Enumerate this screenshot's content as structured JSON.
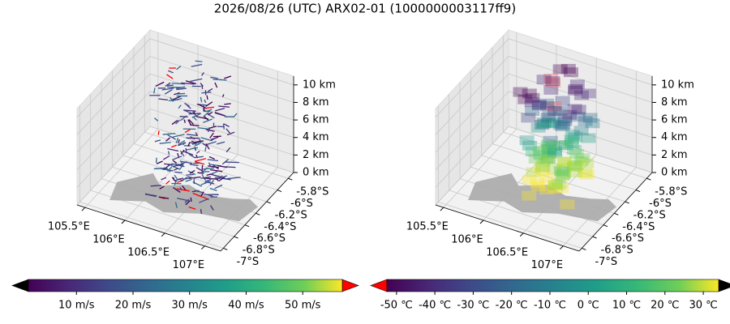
{
  "title": "2026/08/26 (UTC) ARX02-01 (1000000003117ff9)",
  "chart_data": [
    {
      "type": "wind-3d",
      "xlim": [
        105.4,
        107.2
      ],
      "xticks": [
        {
          "value": 105.5,
          "label": "105.5°E"
        },
        {
          "value": 106,
          "label": "106°E"
        },
        {
          "value": 106.5,
          "label": "106.5°E"
        },
        {
          "value": 107,
          "label": "107°E"
        }
      ],
      "ylim": [
        -7.05,
        -5.7
      ],
      "yticks": [
        {
          "value": -7,
          "label": "-7°S"
        },
        {
          "value": -6.8,
          "label": "-6.8°S"
        },
        {
          "value": -6.6,
          "label": "-6.6°S"
        },
        {
          "value": -6.4,
          "label": "-6.4°S"
        },
        {
          "value": -6.2,
          "label": "-6.2°S"
        },
        {
          "value": -6,
          "label": "-6°S"
        },
        {
          "value": -5.8,
          "label": "-5.8°S"
        }
      ],
      "zlim": [
        0,
        11
      ],
      "zticks": [
        {
          "value": 0,
          "label": "0 km"
        },
        {
          "value": 2,
          "label": "2 km"
        },
        {
          "value": 4,
          "label": "4 km"
        },
        {
          "value": 6,
          "label": "6 km"
        },
        {
          "value": 8,
          "label": "8 km"
        },
        {
          "value": 10,
          "label": "10 km"
        }
      ],
      "colorbar": {
        "lim": [
          1.5,
          57
        ],
        "under": "#000000",
        "over": "#ff0000",
        "ticks": [
          {
            "value": 10,
            "label": "10 m/s"
          },
          {
            "value": 20,
            "label": "20 m/s"
          },
          {
            "value": 30,
            "label": "30 m/s"
          },
          {
            "value": 40,
            "label": "40 m/s"
          },
          {
            "value": 50,
            "label": "50 m/s"
          }
        ]
      }
    },
    {
      "type": "temperature-voxel-3d",
      "xlim": [
        105.4,
        107.2
      ],
      "xticks": [
        {
          "value": 105.5,
          "label": "105.5°E"
        },
        {
          "value": 106,
          "label": "106°E"
        },
        {
          "value": 106.5,
          "label": "106.5°E"
        },
        {
          "value": 107,
          "label": "107°E"
        }
      ],
      "ylim": [
        -7.05,
        -5.7
      ],
      "yticks": [
        {
          "value": -7,
          "label": "-7°S"
        },
        {
          "value": -6.8,
          "label": "-6.8°S"
        },
        {
          "value": -6.6,
          "label": "-6.6°S"
        },
        {
          "value": -6.4,
          "label": "-6.4°S"
        },
        {
          "value": -6.2,
          "label": "-6.2°S"
        },
        {
          "value": -6,
          "label": "-6°S"
        },
        {
          "value": -5.8,
          "label": "-5.8°S"
        }
      ],
      "zlim": [
        0,
        11
      ],
      "zticks": [
        {
          "value": 0,
          "label": "0 km"
        },
        {
          "value": 2,
          "label": "2 km"
        },
        {
          "value": 4,
          "label": "4 km"
        },
        {
          "value": 6,
          "label": "6 km"
        },
        {
          "value": 8,
          "label": "8 km"
        },
        {
          "value": 10,
          "label": "10 km"
        }
      ],
      "colorbar": {
        "lim": [
          -52.5,
          34
        ],
        "under": "#ff0000",
        "over": "#000000",
        "ticks": [
          {
            "value": -50,
            "label": "-50 ℃"
          },
          {
            "value": -40,
            "label": "-40 ℃"
          },
          {
            "value": -30,
            "label": "-30 ℃"
          },
          {
            "value": -20,
            "label": "-20 ℃"
          },
          {
            "value": -10,
            "label": "-10 ℃"
          },
          {
            "value": 0,
            "label": "0 ℃"
          },
          {
            "value": 10,
            "label": "10 ℃"
          },
          {
            "value": 20,
            "label": "20 ℃"
          },
          {
            "value": 30,
            "label": "30 ℃"
          }
        ]
      }
    }
  ]
}
